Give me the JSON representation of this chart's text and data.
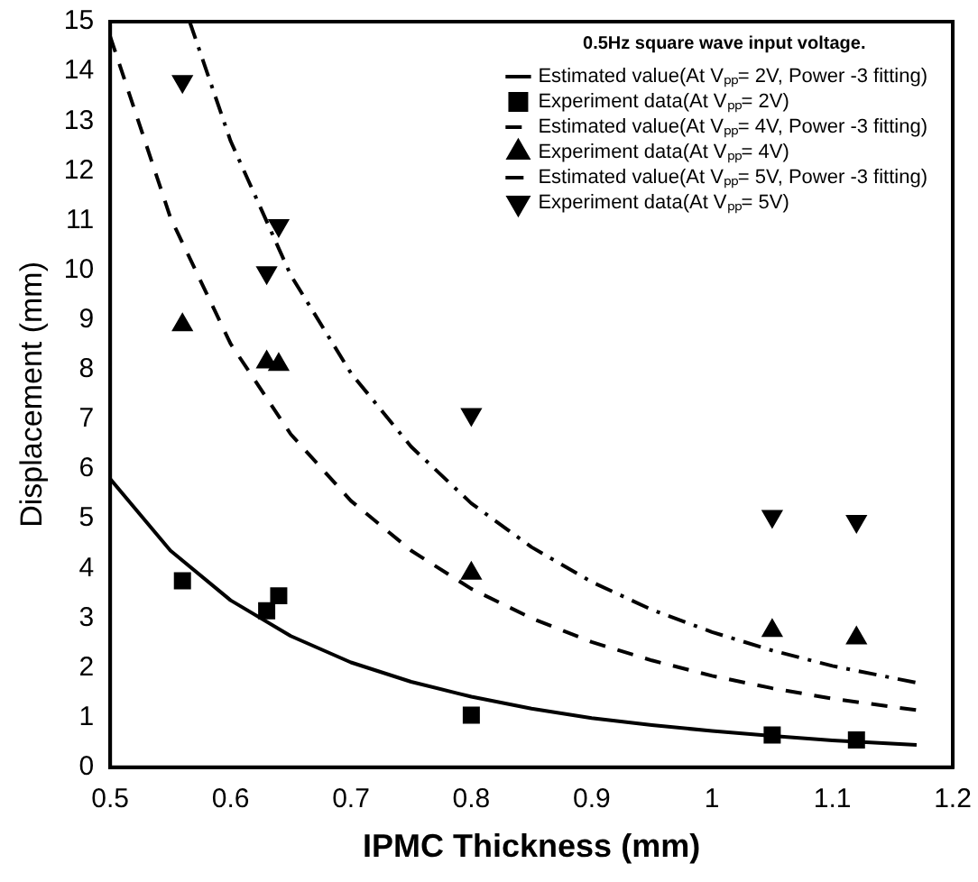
{
  "chart_data": {
    "type": "line",
    "xlabel": "IPMC Thickness (mm)",
    "ylabel": "Displacement (mm)",
    "legend_title": "0.5Hz square wave input voltage.",
    "legend": "top right",
    "grid": false,
    "xlim": [
      0.5,
      1.2
    ],
    "xticks": [
      0.5,
      0.6,
      0.7,
      0.8,
      0.9,
      1,
      1.1,
      1.2
    ],
    "ylim": [
      0,
      15
    ],
    "yticks": [
      0,
      1,
      2,
      3,
      4,
      5,
      6,
      7,
      8,
      9,
      10,
      11,
      12,
      13,
      14,
      15
    ],
    "series": [
      {
        "type": "line",
        "name": "Estimated value(At Vₚₚ= 2V, Power -3 fitting)",
        "color": "#000000",
        "line_style": "solid",
        "marker": "none",
        "x": [
          0.5,
          0.55,
          0.6,
          0.65,
          0.7,
          0.75,
          0.8,
          0.85,
          0.9,
          0.95,
          1,
          1.05,
          1.1,
          1.17
        ],
        "values": [
          5.8,
          4.36,
          3.36,
          2.64,
          2.11,
          1.72,
          1.42,
          1.18,
          0.99,
          0.85,
          0.73,
          0.63,
          0.54,
          0.45
        ]
      },
      {
        "type": "scatter",
        "name": "Experiment data(At Vₚₚ= 2V)",
        "color": "#000000",
        "marker": "square",
        "x": [
          0.56,
          0.63,
          0.64,
          0.8,
          1.05,
          1.12
        ],
        "values": [
          3.75,
          3.15,
          3.45,
          1.05,
          0.65,
          0.55
        ]
      },
      {
        "type": "line",
        "name": "Estimated value(At Vₚₚ= 4V, Power -3 fitting)",
        "color": "#000000",
        "line_style": "dashed",
        "marker": "none",
        "x": [
          0.5,
          0.55,
          0.6,
          0.65,
          0.7,
          0.75,
          0.8,
          0.85,
          0.9,
          0.95,
          1,
          1.05,
          1.1,
          1.17
        ],
        "values": [
          14.7,
          11.06,
          8.52,
          6.7,
          5.36,
          4.36,
          3.59,
          3,
          2.52,
          2.15,
          1.84,
          1.59,
          1.38,
          1.15
        ]
      },
      {
        "type": "scatter",
        "name": "Experiment data(At Vₚₚ= 4V)",
        "color": "#000000",
        "marker": "triangle",
        "x": [
          0.56,
          0.63,
          0.64,
          0.8,
          1.05,
          1.12
        ],
        "values": [
          8.9,
          8.15,
          8.1,
          3.9,
          2.75,
          2.6
        ]
      },
      {
        "type": "line",
        "name": "Estimated value(At Vₚₚ= 5V, Power -3 fitting)",
        "color": "#000000",
        "line_style": "dashdot",
        "marker": "none",
        "x": [
          0.566,
          0.6,
          0.65,
          0.7,
          0.75,
          0.8,
          0.85,
          0.9,
          0.95,
          1,
          1.05,
          1.1,
          1.17
        ],
        "values": [
          15,
          12.6,
          9.9,
          7.93,
          6.45,
          5.31,
          4.43,
          3.73,
          3.17,
          2.72,
          2.35,
          2.04,
          1.7
        ]
      },
      {
        "type": "scatter",
        "name": "Experiment data(At Vₚₚ= 5V)",
        "color": "#000000",
        "marker": "triangle-down",
        "x": [
          0.56,
          0.63,
          0.64,
          0.8,
          1.05,
          1.12
        ],
        "values": [
          13.8,
          9.95,
          10.9,
          7.1,
          5.05,
          4.95
        ]
      }
    ]
  }
}
